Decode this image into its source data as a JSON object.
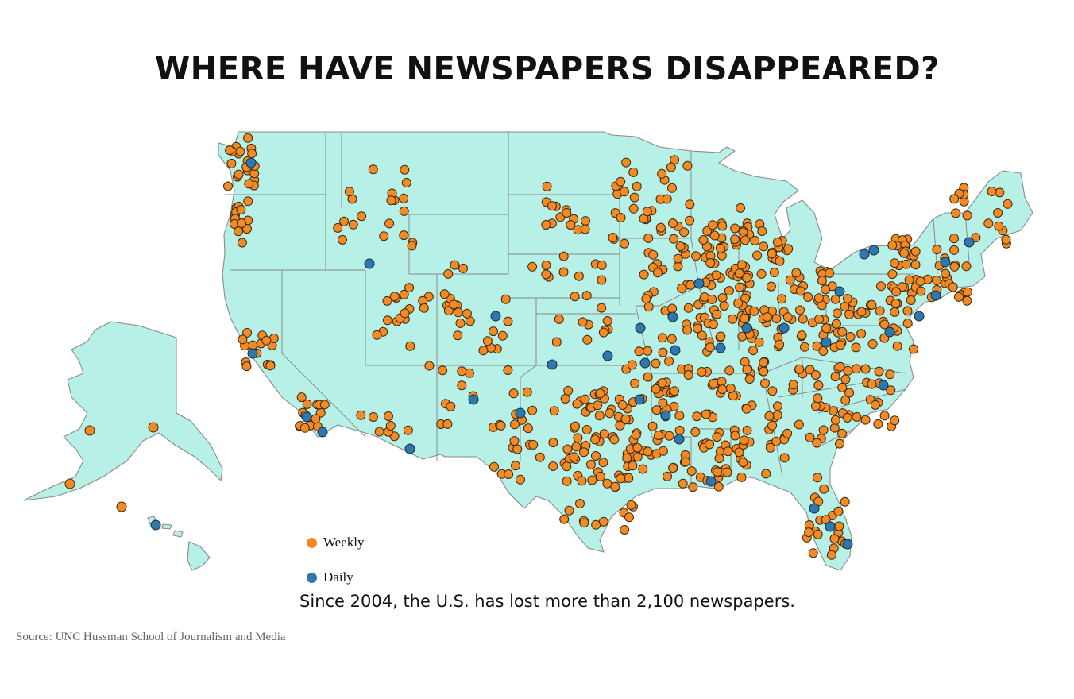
{
  "title": "WHERE HAVE NEWSPAPERS DISAPPEARED?",
  "caption": "Since 2004, the U.S. has lost more than 2,100 newspapers.",
  "source": "Source: UNC Hussman School of Journalism and Media",
  "legend": [
    {
      "label": "Weekly",
      "color": "#f48a24"
    },
    {
      "label": "Daily",
      "color": "#2f78ad"
    }
  ],
  "colors": {
    "land": "#b6f0e7",
    "border": "#8a8a8a",
    "weekly": "#f48a24",
    "daily": "#2f78ad"
  }
}
